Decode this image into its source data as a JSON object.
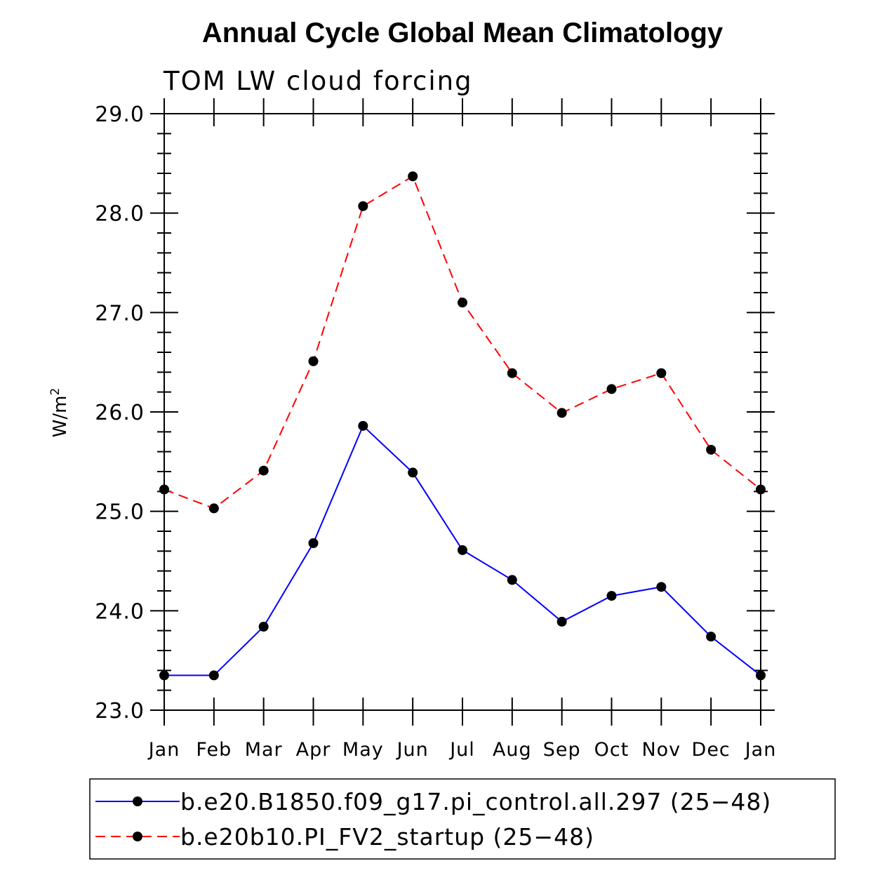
{
  "chart_data": {
    "type": "line",
    "title": "Annual Cycle Global Mean Climatology",
    "subtitle": "TOM LW cloud forcing",
    "ylabel": "W/m",
    "ylabel_superscript": "2",
    "xlabel": "",
    "ylim": [
      23.0,
      29.0
    ],
    "yticks": [
      "23.0",
      "24.0",
      "25.0",
      "26.0",
      "27.0",
      "28.0",
      "29.0"
    ],
    "categories": [
      "Jan",
      "Feb",
      "Mar",
      "Apr",
      "May",
      "Jun",
      "Jul",
      "Aug",
      "Sep",
      "Oct",
      "Nov",
      "Dec",
      "Jan"
    ],
    "series": [
      {
        "name": "b.e20.B1850.f09_g17.pi_control.all.297 (25−48)",
        "color": "#0000ff",
        "dash": "solid",
        "values": [
          23.35,
          23.35,
          23.84,
          24.68,
          25.86,
          25.39,
          24.61,
          24.31,
          23.89,
          24.15,
          24.24,
          23.74,
          23.35
        ]
      },
      {
        "name": "b.e20b10.PI_FV2_startup (25−48)",
        "color": "#ff0000",
        "dash": "dashed",
        "values": [
          25.22,
          25.03,
          25.41,
          26.51,
          28.07,
          28.37,
          27.1,
          26.39,
          25.99,
          26.23,
          26.39,
          25.62,
          25.22
        ]
      }
    ],
    "legend_position": "bottom",
    "marker_color": "#000000",
    "grid": false
  }
}
